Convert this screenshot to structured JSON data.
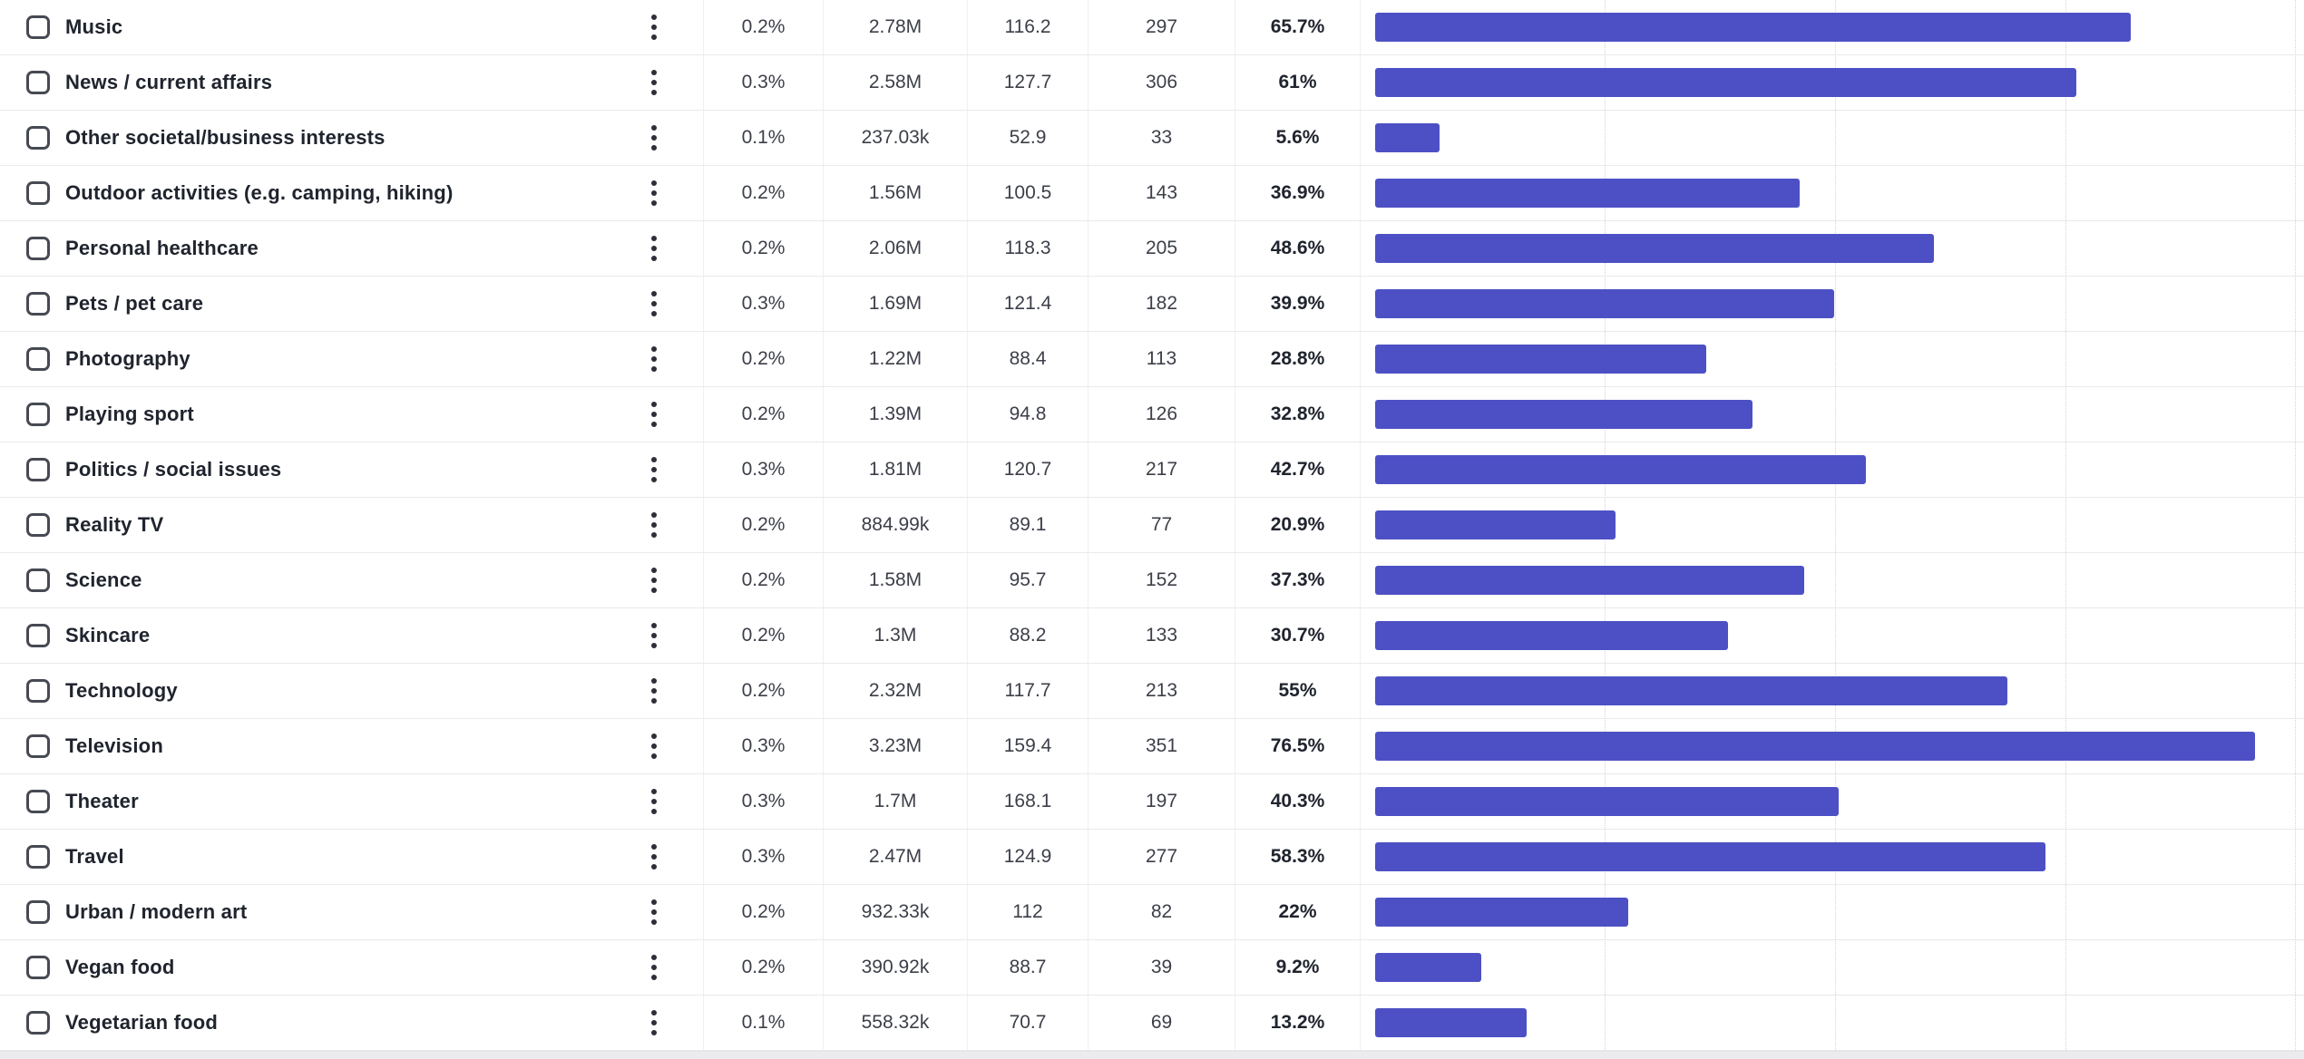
{
  "colors": {
    "bar": "#4d50c4",
    "label_text": "#20242e",
    "value_text": "#3c3f48",
    "row_border": "#e9eaee",
    "gridline": "#d2d4db",
    "scrollbar_track": "#ececee"
  },
  "icons": {
    "row_select": "checkbox-unchecked",
    "row_menu": "kebab-vertical-dots-icon"
  },
  "table": {
    "rows": [
      {
        "label": "Music",
        "audience_pct": "0.2%",
        "audience_size": "2.78M",
        "index": "116.2",
        "responses": "297",
        "reach_pct": "65.7%",
        "reach_value": 65.7
      },
      {
        "label": "News / current affairs",
        "audience_pct": "0.3%",
        "audience_size": "2.58M",
        "index": "127.7",
        "responses": "306",
        "reach_pct": "61%",
        "reach_value": 61
      },
      {
        "label": "Other societal/business interests",
        "audience_pct": "0.1%",
        "audience_size": "237.03k",
        "index": "52.9",
        "responses": "33",
        "reach_pct": "5.6%",
        "reach_value": 5.6
      },
      {
        "label": "Outdoor activities (e.g. camping, hiking)",
        "audience_pct": "0.2%",
        "audience_size": "1.56M",
        "index": "100.5",
        "responses": "143",
        "reach_pct": "36.9%",
        "reach_value": 36.9
      },
      {
        "label": "Personal healthcare",
        "audience_pct": "0.2%",
        "audience_size": "2.06M",
        "index": "118.3",
        "responses": "205",
        "reach_pct": "48.6%",
        "reach_value": 48.6
      },
      {
        "label": "Pets / pet care",
        "audience_pct": "0.3%",
        "audience_size": "1.69M",
        "index": "121.4",
        "responses": "182",
        "reach_pct": "39.9%",
        "reach_value": 39.9
      },
      {
        "label": "Photography",
        "audience_pct": "0.2%",
        "audience_size": "1.22M",
        "index": "88.4",
        "responses": "113",
        "reach_pct": "28.8%",
        "reach_value": 28.8
      },
      {
        "label": "Playing sport",
        "audience_pct": "0.2%",
        "audience_size": "1.39M",
        "index": "94.8",
        "responses": "126",
        "reach_pct": "32.8%",
        "reach_value": 32.8
      },
      {
        "label": "Politics / social issues",
        "audience_pct": "0.3%",
        "audience_size": "1.81M",
        "index": "120.7",
        "responses": "217",
        "reach_pct": "42.7%",
        "reach_value": 42.7
      },
      {
        "label": "Reality TV",
        "audience_pct": "0.2%",
        "audience_size": "884.99k",
        "index": "89.1",
        "responses": "77",
        "reach_pct": "20.9%",
        "reach_value": 20.9
      },
      {
        "label": "Science",
        "audience_pct": "0.2%",
        "audience_size": "1.58M",
        "index": "95.7",
        "responses": "152",
        "reach_pct": "37.3%",
        "reach_value": 37.3
      },
      {
        "label": "Skincare",
        "audience_pct": "0.2%",
        "audience_size": "1.3M",
        "index": "88.2",
        "responses": "133",
        "reach_pct": "30.7%",
        "reach_value": 30.7
      },
      {
        "label": "Technology",
        "audience_pct": "0.2%",
        "audience_size": "2.32M",
        "index": "117.7",
        "responses": "213",
        "reach_pct": "55%",
        "reach_value": 55
      },
      {
        "label": "Television",
        "audience_pct": "0.3%",
        "audience_size": "3.23M",
        "index": "159.4",
        "responses": "351",
        "reach_pct": "76.5%",
        "reach_value": 76.5
      },
      {
        "label": "Theater",
        "audience_pct": "0.3%",
        "audience_size": "1.7M",
        "index": "168.1",
        "responses": "197",
        "reach_pct": "40.3%",
        "reach_value": 40.3
      },
      {
        "label": "Travel",
        "audience_pct": "0.3%",
        "audience_size": "2.47M",
        "index": "124.9",
        "responses": "277",
        "reach_pct": "58.3%",
        "reach_value": 58.3
      },
      {
        "label": "Urban / modern art",
        "audience_pct": "0.2%",
        "audience_size": "932.33k",
        "index": "112",
        "responses": "82",
        "reach_pct": "22%",
        "reach_value": 22
      },
      {
        "label": "Vegan food",
        "audience_pct": "0.2%",
        "audience_size": "390.92k",
        "index": "88.7",
        "responses": "39",
        "reach_pct": "9.2%",
        "reach_value": 9.2
      },
      {
        "label": "Vegetarian food",
        "audience_pct": "0.1%",
        "audience_size": "558.32k",
        "index": "70.7",
        "responses": "69",
        "reach_pct": "13.2%",
        "reach_value": 13.2
      }
    ]
  },
  "chart_data": {
    "type": "bar",
    "orientation": "horizontal",
    "categories": [
      "Music",
      "News / current affairs",
      "Other societal/business interests",
      "Outdoor activities (e.g. camping, hiking)",
      "Personal healthcare",
      "Pets / pet care",
      "Photography",
      "Playing sport",
      "Politics / social issues",
      "Reality TV",
      "Science",
      "Skincare",
      "Technology",
      "Television",
      "Theater",
      "Travel",
      "Urban / modern art",
      "Vegan food",
      "Vegetarian food"
    ],
    "values": [
      65.7,
      61,
      5.6,
      36.9,
      48.6,
      39.9,
      28.8,
      32.8,
      42.7,
      20.9,
      37.3,
      30.7,
      55,
      76.5,
      40.3,
      58.3,
      22,
      9.2,
      13.2
    ],
    "title": "",
    "xlabel": "",
    "ylabel": "",
    "xlim": [
      0,
      100
    ],
    "gridlines_pct": [
      20,
      40,
      60,
      80
    ],
    "grid": true,
    "legend": false,
    "bar_color": "#4d50c4"
  }
}
